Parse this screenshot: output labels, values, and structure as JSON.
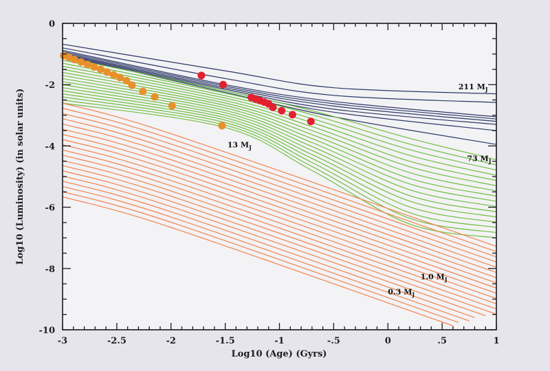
{
  "chart_data": {
    "type": "line",
    "title": "",
    "xlabel": "Log10 (Age) (Gyrs)",
    "ylabel": "Log10 (Luminosity) (in solar units)",
    "xlim": [
      -3,
      1
    ],
    "ylim": [
      -10,
      0
    ],
    "x_ticks": [
      -3,
      -2.5,
      -2,
      -1.5,
      -1,
      -0.5,
      0,
      0.5,
      1
    ],
    "x_tick_labels": [
      "-3",
      "-2.5",
      "-2",
      "-1.5",
      "-1",
      "-.5",
      "0",
      ".5",
      "1"
    ],
    "y_ticks": [
      0,
      -2,
      -4,
      -6,
      -8,
      -10
    ],
    "y_tick_labels": [
      "0",
      "-2",
      "-4",
      "-6",
      "-8",
      "-10"
    ],
    "grid": false,
    "colors": {
      "navy_tracks": "#2b3766",
      "green_tracks": "#6dbf3e",
      "orange_tracks": "#f2824a",
      "red_markers": "#e3202e",
      "orange_markers": "#e8902a",
      "frame": "#1a1a1a",
      "background": "#f3f2f5"
    },
    "track_groups": [
      {
        "color_key": "navy_tracks",
        "tracks": [
          [
            [
              -3,
              -0.68
            ],
            [
              -1.5,
              -1.55
            ],
            [
              -0.5,
              -2.1
            ],
            [
              1,
              -2.3
            ]
          ],
          [
            [
              -3,
              -0.8
            ],
            [
              -1.5,
              -1.8
            ],
            [
              -0.5,
              -2.35
            ],
            [
              1,
              -2.58
            ]
          ],
          [
            [
              -3,
              -0.88
            ],
            [
              -1.5,
              -2.0
            ],
            [
              -0.5,
              -2.55
            ],
            [
              1,
              -3.05
            ]
          ],
          [
            [
              -3,
              -0.92
            ],
            [
              -1.5,
              -2.05
            ],
            [
              -0.5,
              -2.62
            ],
            [
              1,
              -3.12
            ]
          ],
          [
            [
              -3,
              -0.96
            ],
            [
              -1.5,
              -2.1
            ],
            [
              -0.5,
              -2.7
            ],
            [
              1,
              -3.2
            ]
          ],
          [
            [
              -3,
              -0.99
            ],
            [
              -1.5,
              -2.15
            ],
            [
              -0.5,
              -2.8
            ],
            [
              1,
              -3.3
            ]
          ],
          [
            [
              -3,
              -1.02
            ],
            [
              -1.5,
              -2.2
            ],
            [
              -0.5,
              -2.9
            ],
            [
              1,
              -3.5
            ]
          ],
          [
            [
              -3,
              -1.05
            ],
            [
              -1.5,
              -2.25
            ],
            [
              -0.5,
              -3.05
            ],
            [
              1,
              -3.95
            ]
          ]
        ]
      },
      {
        "color_key": "green_tracks",
        "tracks": [
          [
            [
              -3,
              -1.1
            ],
            [
              -1.5,
              -2.2
            ],
            [
              -0.7,
              -2.85
            ],
            [
              0.2,
              -3.75
            ],
            [
              1,
              -4.45
            ]
          ],
          [
            [
              -3,
              -1.2
            ],
            [
              -1.5,
              -2.28
            ],
            [
              -0.7,
              -2.98
            ],
            [
              0.2,
              -3.94
            ],
            [
              1,
              -4.62
            ]
          ],
          [
            [
              -3,
              -1.3
            ],
            [
              -1.5,
              -2.36
            ],
            [
              -0.7,
              -3.11
            ],
            [
              0.2,
              -4.12
            ],
            [
              1,
              -4.79
            ]
          ],
          [
            [
              -3,
              -1.4
            ],
            [
              -1.5,
              -2.44
            ],
            [
              -0.7,
              -3.24
            ],
            [
              0.2,
              -4.31
            ],
            [
              1,
              -4.96
            ]
          ],
          [
            [
              -3,
              -1.5
            ],
            [
              -1.5,
              -2.52
            ],
            [
              -0.7,
              -3.37
            ],
            [
              0.2,
              -4.5
            ],
            [
              1,
              -5.13
            ]
          ],
          [
            [
              -3,
              -1.6
            ],
            [
              -1.5,
              -2.6
            ],
            [
              -0.7,
              -3.5
            ],
            [
              0.2,
              -4.68
            ],
            [
              1,
              -5.3
            ]
          ],
          [
            [
              -3,
              -1.7
            ],
            [
              -1.5,
              -2.68
            ],
            [
              -0.7,
              -3.63
            ],
            [
              0.2,
              -4.87
            ],
            [
              1,
              -5.47
            ]
          ],
          [
            [
              -3,
              -1.8
            ],
            [
              -1.5,
              -2.76
            ],
            [
              -0.7,
              -3.76
            ],
            [
              0.2,
              -5.06
            ],
            [
              1,
              -5.64
            ]
          ],
          [
            [
              -3,
              -1.9
            ],
            [
              -1.5,
              -2.84
            ],
            [
              -0.7,
              -3.89
            ],
            [
              0.2,
              -5.24
            ],
            [
              1,
              -5.81
            ]
          ],
          [
            [
              -3,
              -2.0
            ],
            [
              -1.5,
              -2.92
            ],
            [
              -0.7,
              -4.02
            ],
            [
              0.2,
              -5.43
            ],
            [
              1,
              -5.98
            ]
          ],
          [
            [
              -3,
              -2.1
            ],
            [
              -1.5,
              -3.0
            ],
            [
              -0.7,
              -4.15
            ],
            [
              0.2,
              -5.62
            ],
            [
              1,
              -6.15
            ]
          ],
          [
            [
              -3,
              -2.2
            ],
            [
              -1.5,
              -3.08
            ],
            [
              -0.7,
              -4.28
            ],
            [
              0.2,
              -5.8
            ],
            [
              1,
              -6.32
            ]
          ],
          [
            [
              -3,
              -2.3
            ],
            [
              -1.5,
              -3.16
            ],
            [
              -0.7,
              -4.41
            ],
            [
              0.2,
              -5.99
            ],
            [
              1,
              -6.49
            ]
          ],
          [
            [
              -3,
              -2.4
            ],
            [
              -1.5,
              -3.24
            ],
            [
              -0.7,
              -4.54
            ],
            [
              0.2,
              -6.18
            ],
            [
              1,
              -6.66
            ]
          ],
          [
            [
              -3,
              -2.5
            ],
            [
              -1.5,
              -3.32
            ],
            [
              -0.7,
              -4.67
            ],
            [
              0.2,
              -6.36
            ],
            [
              1,
              -6.83
            ]
          ],
          [
            [
              -3,
              -2.6
            ],
            [
              -1.5,
              -3.4
            ],
            [
              -0.7,
              -4.8
            ],
            [
              0.2,
              -6.55
            ],
            [
              1,
              -7.0
            ]
          ]
        ]
      },
      {
        "color_key": "orange_tracks",
        "tracks": [
          [
            [
              -3,
              -2.6
            ],
            [
              -2,
              -3.6
            ],
            [
              1,
              -7.28
            ]
          ],
          [
            [
              -3,
              -2.77
            ],
            [
              -2,
              -3.77
            ],
            [
              1,
              -7.45
            ]
          ],
          [
            [
              -3,
              -2.94
            ],
            [
              -2,
              -3.94
            ],
            [
              1,
              -7.62
            ]
          ],
          [
            [
              -3,
              -3.11
            ],
            [
              -2,
              -4.11
            ],
            [
              1,
              -7.79
            ]
          ],
          [
            [
              -3,
              -3.28
            ],
            [
              -2,
              -4.28
            ],
            [
              1,
              -7.96
            ]
          ],
          [
            [
              -3,
              -3.45
            ],
            [
              -2,
              -4.45
            ],
            [
              1,
              -8.13
            ]
          ],
          [
            [
              -3,
              -3.62
            ],
            [
              -2,
              -4.62
            ],
            [
              1,
              -8.3
            ]
          ],
          [
            [
              -3,
              -3.79
            ],
            [
              -2,
              -4.79
            ],
            [
              1,
              -8.47
            ]
          ],
          [
            [
              -3,
              -3.96
            ],
            [
              -2,
              -4.96
            ],
            [
              1,
              -8.64
            ]
          ],
          [
            [
              -3,
              -4.13
            ],
            [
              -2,
              -5.13
            ],
            [
              1,
              -8.81
            ]
          ],
          [
            [
              -3,
              -4.3
            ],
            [
              -2,
              -5.3
            ],
            [
              1,
              -8.98
            ]
          ],
          [
            [
              -3,
              -4.47
            ],
            [
              -2,
              -5.47
            ],
            [
              1,
              -9.15
            ]
          ],
          [
            [
              -3,
              -4.64
            ],
            [
              -2,
              -5.64
            ],
            [
              1,
              -9.32
            ]
          ],
          [
            [
              -3,
              -4.81
            ],
            [
              -2,
              -5.81
            ],
            [
              1,
              -9.49
            ]
          ],
          [
            [
              -3,
              -4.98
            ],
            [
              -2,
              -5.98
            ],
            [
              0.9,
              -9.54
            ]
          ],
          [
            [
              -3,
              -5.15
            ],
            [
              -2,
              -6.15
            ],
            [
              0.8,
              -9.6
            ]
          ],
          [
            [
              -3,
              -5.32
            ],
            [
              -2,
              -6.32
            ],
            [
              0.75,
              -9.71
            ]
          ],
          [
            [
              -3,
              -5.49
            ],
            [
              -2,
              -6.49
            ],
            [
              0.65,
              -9.76
            ]
          ],
          [
            [
              -3,
              -5.66
            ],
            [
              -2,
              -6.66
            ],
            [
              0.6,
              -9.87
            ]
          ]
        ]
      }
    ],
    "marker_groups": [
      {
        "color_key": "orange_markers",
        "points": [
          [
            -2.99,
            -1.05
          ],
          [
            -2.94,
            -1.11
          ],
          [
            -2.89,
            -1.18
          ],
          [
            -2.83,
            -1.26
          ],
          [
            -2.77,
            -1.34
          ],
          [
            -2.71,
            -1.42
          ],
          [
            -2.65,
            -1.5
          ],
          [
            -2.59,
            -1.59
          ],
          [
            -2.53,
            -1.68
          ],
          [
            -2.47,
            -1.77
          ],
          [
            -2.41,
            -1.87
          ],
          [
            -2.36,
            -2.02
          ],
          [
            -2.26,
            -2.22
          ],
          [
            -2.15,
            -2.4
          ],
          [
            -1.99,
            -2.69
          ],
          [
            -1.53,
            -3.34
          ]
        ]
      },
      {
        "color_key": "red_markers",
        "points": [
          [
            -1.72,
            -1.7
          ],
          [
            -1.52,
            -2.0
          ],
          [
            -1.26,
            -2.42
          ],
          [
            -1.22,
            -2.47
          ],
          [
            -1.18,
            -2.52
          ],
          [
            -1.14,
            -2.57
          ],
          [
            -1.1,
            -2.63
          ],
          [
            -1.06,
            -2.74
          ],
          [
            -0.98,
            -2.85
          ],
          [
            -0.88,
            -2.98
          ],
          [
            -0.71,
            -3.2
          ]
        ]
      }
    ],
    "annotations": [
      {
        "mass": "211",
        "unit": "M",
        "sub": "J",
        "x": 0.65,
        "y": -2.15
      },
      {
        "mass": "73",
        "unit": "M",
        "sub": "J",
        "x": 0.73,
        "y": -4.5
      },
      {
        "mass": "13",
        "unit": "M",
        "sub": "J",
        "x": -1.48,
        "y": -4.05
      },
      {
        "mass": "1.0",
        "unit": "M",
        "sub": "J",
        "x": 0.3,
        "y": -8.35
      },
      {
        "mass": "0.3",
        "unit": "M",
        "sub": "J",
        "x": 0.0,
        "y": -8.85
      }
    ]
  }
}
